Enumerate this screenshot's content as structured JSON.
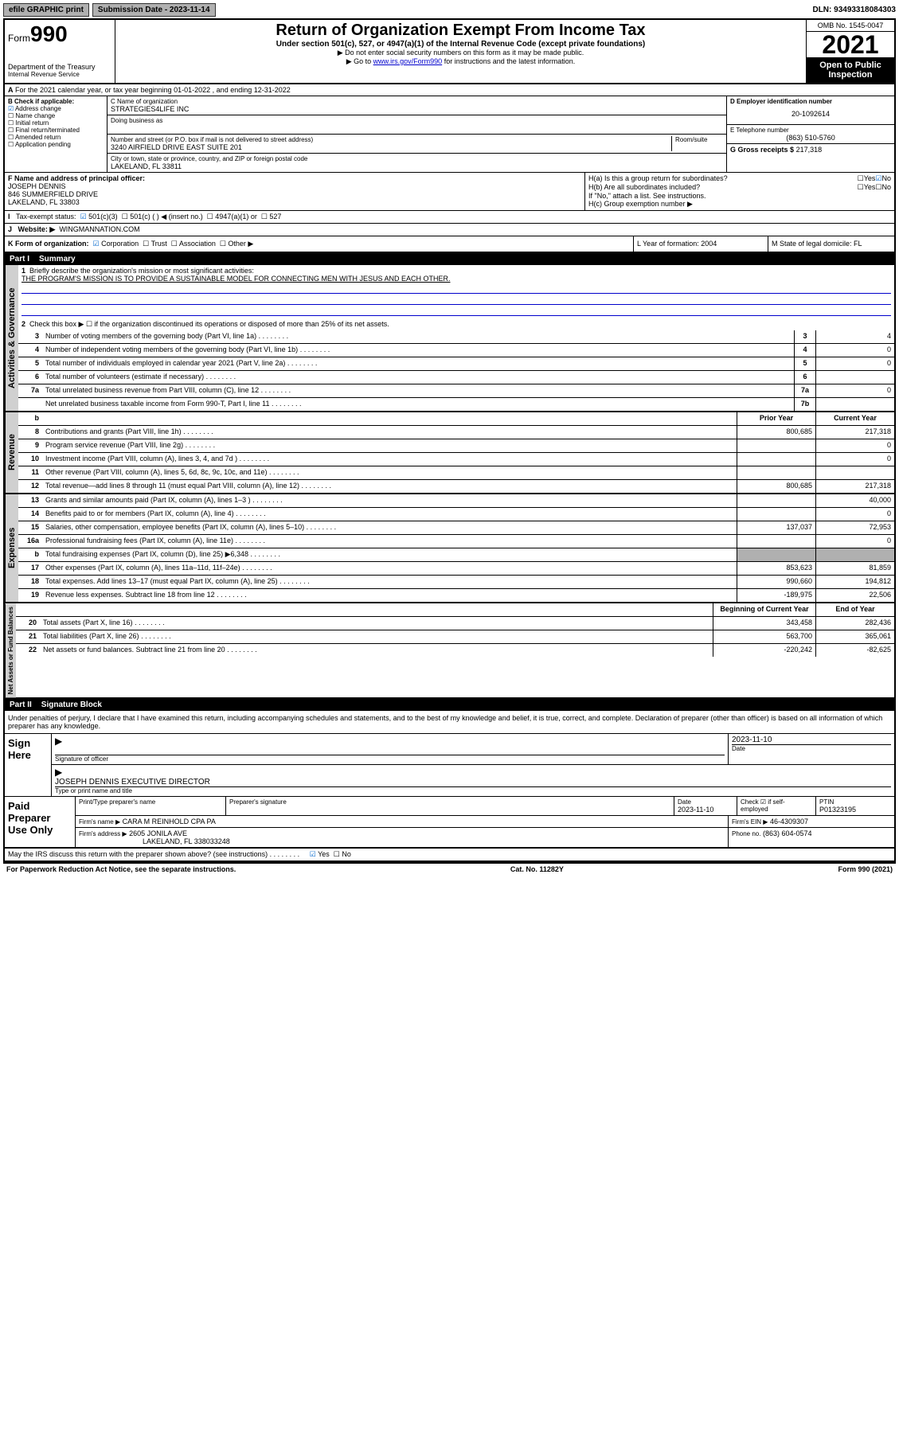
{
  "top": {
    "efile": "efile GRAPHIC print",
    "sub_label": "Submission Date - 2023-11-14",
    "dln": "DLN: 93493318084303"
  },
  "header": {
    "form": "Form",
    "num": "990",
    "dept": "Department of the Treasury",
    "irs": "Internal Revenue Service",
    "title": "Return of Organization Exempt From Income Tax",
    "sub1": "Under section 501(c), 527, or 4947(a)(1) of the Internal Revenue Code (except private foundations)",
    "sub2": "▶ Do not enter social security numbers on this form as it may be made public.",
    "sub3_pre": "▶ Go to ",
    "sub3_link": "www.irs.gov/Form990",
    "sub3_post": " for instructions and the latest information.",
    "omb": "OMB No. 1545-0047",
    "year": "2021",
    "open": "Open to Public Inspection"
  },
  "lineA": "For the 2021 calendar year, or tax year beginning 01-01-2022   , and ending 12-31-2022",
  "colB": {
    "label": "B Check if applicable:",
    "items": [
      "Address change",
      "Name change",
      "Initial return",
      "Final return/terminated",
      "Amended return",
      "Application pending"
    ],
    "checked": [
      true,
      false,
      false,
      false,
      false,
      false
    ]
  },
  "colC": {
    "name_label": "C Name of organization",
    "name": "STRATEGIES4LIFE INC",
    "dba_label": "Doing business as",
    "addr_label": "Number and street (or P.O. box if mail is not delivered to street address)",
    "room_label": "Room/suite",
    "addr": "3240 AIRFIELD DRIVE EAST SUITE 201",
    "city_label": "City or town, state or province, country, and ZIP or foreign postal code",
    "city": "LAKELAND, FL  33811"
  },
  "colD": {
    "ein_label": "D Employer identification number",
    "ein": "20-1092614",
    "tel_label": "E Telephone number",
    "tel": "(863) 510-5760",
    "gross_label": "G Gross receipts $",
    "gross": "217,318"
  },
  "rowF": {
    "label": "F  Name and address of principal officer:",
    "name": "JOSEPH DENNIS",
    "addr1": "846 SUMMERFIELD DRIVE",
    "addr2": "LAKELAND, FL  33803"
  },
  "rowH": {
    "ha": "H(a)  Is this a group return for subordinates?",
    "hb": "H(b)  Are all subordinates included?",
    "hb_note": "If \"No,\" attach a list. See instructions.",
    "hc": "H(c)  Group exemption number ▶",
    "yes": "Yes",
    "no": "No"
  },
  "rowI": {
    "label": "Tax-exempt status:",
    "opts": [
      "501(c)(3)",
      "501(c) (  ) ◀ (insert no.)",
      "4947(a)(1) or",
      "527"
    ]
  },
  "rowJ": {
    "label": "Website: ▶",
    "val": "WINGMANNATION.COM"
  },
  "rowK": {
    "label": "K Form of organization:",
    "opts": [
      "Corporation",
      "Trust",
      "Association",
      "Other ▶"
    ],
    "L": "L Year of formation: 2004",
    "M": "M State of legal domicile: FL"
  },
  "part1": {
    "num": "Part I",
    "title": "Summary"
  },
  "summary": {
    "line1_label": "Briefly describe the organization's mission or most significant activities:",
    "line1_val": "THE PROGRAM'S MISSION IS TO PROVIDE A SUSTAINABLE MODEL FOR CONNECTING MEN WITH JESUS AND EACH OTHER.",
    "line2": "Check this box ▶ ☐  if the organization discontinued its operations or disposed of more than 25% of its net assets.",
    "sections": {
      "gov": "Activities & Governance",
      "rev": "Revenue",
      "exp": "Expenses",
      "net": "Net Assets or Fund Balances"
    },
    "rows": [
      {
        "n": "3",
        "d": "Number of voting members of the governing body (Part VI, line 1a)",
        "box": "3",
        "v": "4"
      },
      {
        "n": "4",
        "d": "Number of independent voting members of the governing body (Part VI, line 1b)",
        "box": "4",
        "v": "0"
      },
      {
        "n": "5",
        "d": "Total number of individuals employed in calendar year 2021 (Part V, line 2a)",
        "box": "5",
        "v": "0"
      },
      {
        "n": "6",
        "d": "Total number of volunteers (estimate if necessary)",
        "box": "6",
        "v": ""
      },
      {
        "n": "7a",
        "d": "Total unrelated business revenue from Part VIII, column (C), line 12",
        "box": "7a",
        "v": "0"
      },
      {
        "n": "",
        "d": "Net unrelated business taxable income from Form 990-T, Part I, line 11",
        "box": "7b",
        "v": ""
      }
    ],
    "two_col_header": {
      "b": "b",
      "prior": "Prior Year",
      "curr": "Current Year"
    },
    "rev_rows": [
      {
        "n": "8",
        "d": "Contributions and grants (Part VIII, line 1h)",
        "p": "800,685",
        "c": "217,318"
      },
      {
        "n": "9",
        "d": "Program service revenue (Part VIII, line 2g)",
        "p": "",
        "c": "0"
      },
      {
        "n": "10",
        "d": "Investment income (Part VIII, column (A), lines 3, 4, and 7d )",
        "p": "",
        "c": "0"
      },
      {
        "n": "11",
        "d": "Other revenue (Part VIII, column (A), lines 5, 6d, 8c, 9c, 10c, and 11e)",
        "p": "",
        "c": ""
      },
      {
        "n": "12",
        "d": "Total revenue—add lines 8 through 11 (must equal Part VIII, column (A), line 12)",
        "p": "800,685",
        "c": "217,318"
      }
    ],
    "exp_rows": [
      {
        "n": "13",
        "d": "Grants and similar amounts paid (Part IX, column (A), lines 1–3 )",
        "p": "",
        "c": "40,000"
      },
      {
        "n": "14",
        "d": "Benefits paid to or for members (Part IX, column (A), line 4)",
        "p": "",
        "c": "0"
      },
      {
        "n": "15",
        "d": "Salaries, other compensation, employee benefits (Part IX, column (A), lines 5–10)",
        "p": "137,037",
        "c": "72,953"
      },
      {
        "n": "16a",
        "d": "Professional fundraising fees (Part IX, column (A), line 11e)",
        "p": "",
        "c": "0"
      },
      {
        "n": "b",
        "d": "Total fundraising expenses (Part IX, column (D), line 25) ▶6,348",
        "p": "shaded",
        "c": "shaded"
      },
      {
        "n": "17",
        "d": "Other expenses (Part IX, column (A), lines 11a–11d, 11f–24e)",
        "p": "853,623",
        "c": "81,859"
      },
      {
        "n": "18",
        "d": "Total expenses. Add lines 13–17 (must equal Part IX, column (A), line 25)",
        "p": "990,660",
        "c": "194,812"
      },
      {
        "n": "19",
        "d": "Revenue less expenses. Subtract line 18 from line 12",
        "p": "-189,975",
        "c": "22,506"
      }
    ],
    "net_header": {
      "begin": "Beginning of Current Year",
      "end": "End of Year"
    },
    "net_rows": [
      {
        "n": "20",
        "d": "Total assets (Part X, line 16)",
        "p": "343,458",
        "c": "282,436"
      },
      {
        "n": "21",
        "d": "Total liabilities (Part X, line 26)",
        "p": "563,700",
        "c": "365,061"
      },
      {
        "n": "22",
        "d": "Net assets or fund balances. Subtract line 21 from line 20",
        "p": "-220,242",
        "c": "-82,625"
      }
    ]
  },
  "part2": {
    "num": "Part II",
    "title": "Signature Block"
  },
  "sig": {
    "decl": "Under penalties of perjury, I declare that I have examined this return, including accompanying schedules and statements, and to the best of my knowledge and belief, it is true, correct, and complete. Declaration of preparer (other than officer) is based on all information of which preparer has any knowledge.",
    "sign_here": "Sign Here",
    "sig_officer": "Signature of officer",
    "date": "Date",
    "date_val": "2023-11-10",
    "name_title": "JOSEPH DENNIS  EXECUTIVE DIRECTOR",
    "type_name": "Type or print name and title",
    "paid": "Paid Preparer Use Only",
    "prep_name_label": "Print/Type preparer's name",
    "prep_sig_label": "Preparer's signature",
    "prep_date": "2023-11-10",
    "check_if": "Check ☑ if self-employed",
    "ptin_label": "PTIN",
    "ptin": "P01323195",
    "firm_name_label": "Firm's name    ▶",
    "firm_name": "CARA M REINHOLD CPA PA",
    "firm_ein_label": "Firm's EIN ▶",
    "firm_ein": "46-4309307",
    "firm_addr_label": "Firm's address ▶",
    "firm_addr1": "2605 JONILA AVE",
    "firm_addr2": "LAKELAND, FL  338033248",
    "phone_label": "Phone no.",
    "phone": "(863) 604-0574",
    "discuss": "May the IRS discuss this return with the preparer shown above? (see instructions)",
    "paperwork": "For Paperwork Reduction Act Notice, see the separate instructions.",
    "cat": "Cat. No. 11282Y",
    "form_foot": "Form 990 (2021)"
  }
}
